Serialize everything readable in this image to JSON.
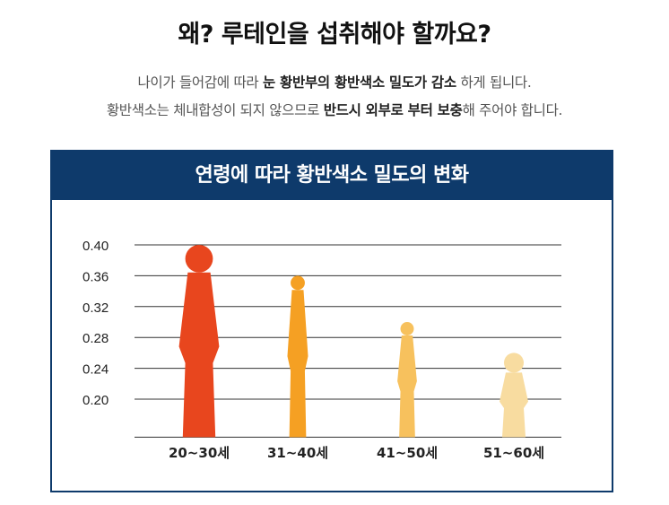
{
  "headline": "왜? 루테인을 섭취해야 할까요?",
  "description": {
    "line1": [
      {
        "text": "나이가 들어감에 따라 ",
        "bold": false
      },
      {
        "text": "눈 황반부의 황반색소 밀도가 감소",
        "bold": true
      },
      {
        "text": " 하게 됩니다.",
        "bold": false
      }
    ],
    "line2": [
      {
        "text": "황반색소는 체내합성이 되지 않으므로 ",
        "bold": false
      },
      {
        "text": "반드시 외부로 부터 보충",
        "bold": true
      },
      {
        "text": "해 주어야 합니다.",
        "bold": false
      }
    ]
  },
  "chart_data": {
    "type": "bar",
    "title": "연령에 따라 황반색소 밀도의 변화",
    "categories": [
      "20~30세",
      "31~40세",
      "41~50세",
      "51~60세"
    ],
    "values": [
      0.4,
      0.36,
      0.3,
      0.26
    ],
    "y_ticks": [
      "0.40",
      "0.36",
      "0.32",
      "0.28",
      "0.24",
      "0.20"
    ],
    "ylim": [
      0.16,
      0.4
    ],
    "grid": true,
    "colors": [
      "#e8461e",
      "#f5a023",
      "#f7c15d",
      "#f8dca0"
    ],
    "figure_icons": [
      "young-woman-icon",
      "adult-woman-icon",
      "elderly-woman-icon",
      "old-woman-with-cane-icon"
    ]
  }
}
